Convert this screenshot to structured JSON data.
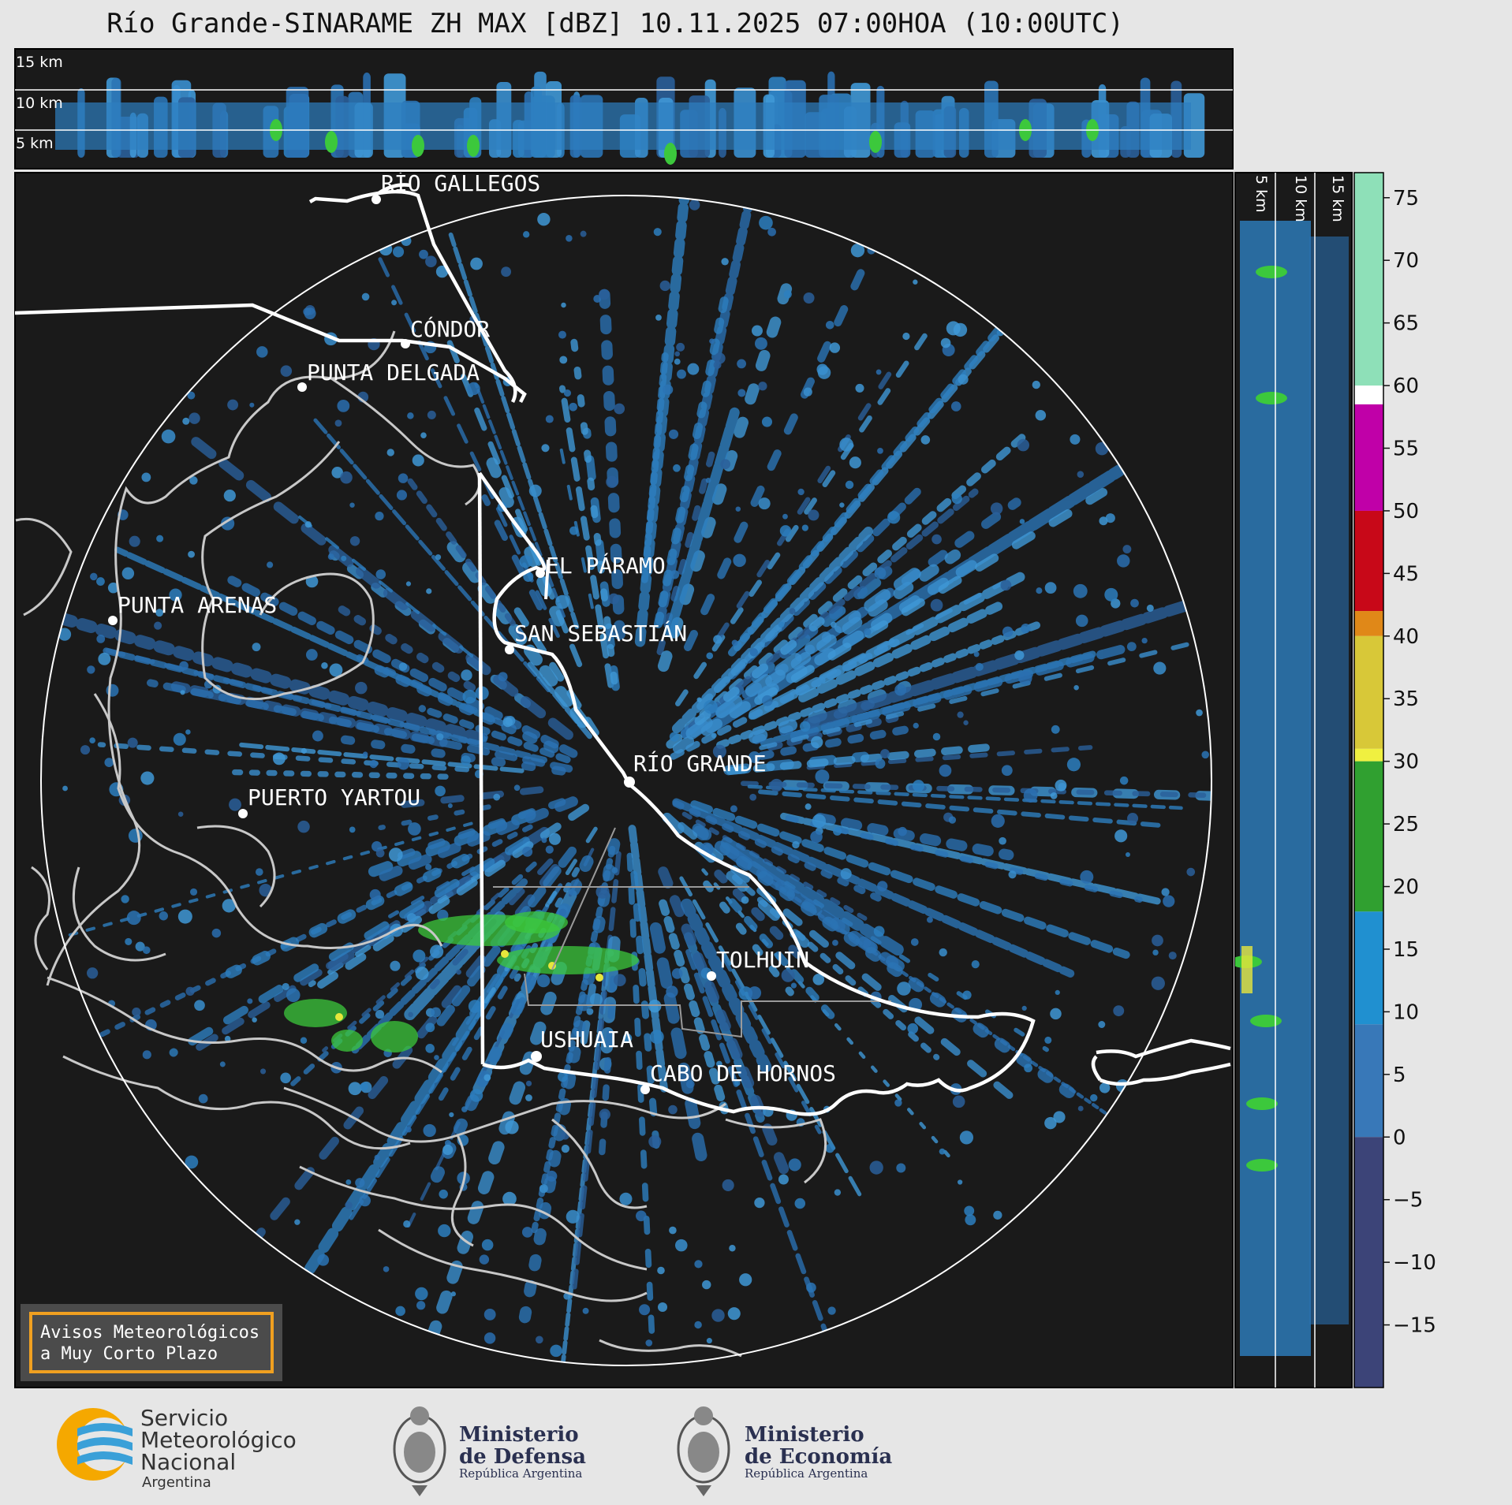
{
  "title": "Río Grande-SINARAME ZH MAX [dBZ] 10.11.2025 07:00HOA (10:00UTC)",
  "top_panel": {
    "height_labels": [
      "15 km",
      "10 km",
      "5 km"
    ]
  },
  "side_panel": {
    "height_labels": [
      "5 km",
      "10 km",
      "15 km"
    ]
  },
  "cities": [
    {
      "name": "RÍO GALLEGOS"
    },
    {
      "name": "CÓNDOR"
    },
    {
      "name": "PUNTA DELGADA"
    },
    {
      "name": "PUNTA ARENAS"
    },
    {
      "name": "EL PÁRAMO"
    },
    {
      "name": "SAN SEBASTIÁN"
    },
    {
      "name": "RÍO GRANDE"
    },
    {
      "name": "PUERTO YARTOU"
    },
    {
      "name": "TOLHUIN"
    },
    {
      "name": "USHUAIA"
    },
    {
      "name": "CABO DE HORNOS"
    }
  ],
  "colorbar": {
    "unit": "dBZ",
    "ticks": [
      "75",
      "70",
      "65",
      "60",
      "55",
      "50",
      "45",
      "40",
      "35",
      "30",
      "25",
      "20",
      "15",
      "10",
      "5",
      "0",
      "−5",
      "−10",
      "−15"
    ],
    "bands": [
      {
        "from": 60,
        "to": 77,
        "color": "#8ee0b8"
      },
      {
        "from": 58.5,
        "to": 60,
        "color": "#ffffff"
      },
      {
        "from": 50,
        "to": 58.5,
        "color": "#c000a8"
      },
      {
        "from": 42,
        "to": 50,
        "color": "#c80818"
      },
      {
        "from": 40,
        "to": 42,
        "color": "#e08818"
      },
      {
        "from": 31,
        "to": 40,
        "color": "#d8c838"
      },
      {
        "from": 30,
        "to": 31,
        "color": "#f0f040"
      },
      {
        "from": 18,
        "to": 30,
        "color": "#30a030"
      },
      {
        "from": 9,
        "to": 18,
        "color": "#2090d0"
      },
      {
        "from": 0,
        "to": 9,
        "color": "#3878b8"
      },
      {
        "from": -20,
        "to": 0,
        "color": "#3c4478"
      }
    ]
  },
  "notice": {
    "line1": "Avisos Meteorológicos",
    "line2": "a Muy Corto Plazo"
  },
  "logos": {
    "smn": {
      "line1": "Servicio",
      "line2": "Meteorológico",
      "line3": "Nacional",
      "line4": "Argentina"
    },
    "defensa": {
      "line1": "Ministerio",
      "line2": "de Defensa",
      "line3": "República Argentina"
    },
    "economia": {
      "line1": "Ministerio",
      "line2": "de Economía",
      "line3": "República Argentina"
    }
  },
  "colors": {
    "background": "#e6e6e6",
    "map_background": "#1a1a1a",
    "echo_blue": "#2d7fc0",
    "echo_green": "#3cc83c",
    "echo_yellow": "#e6e63c"
  }
}
